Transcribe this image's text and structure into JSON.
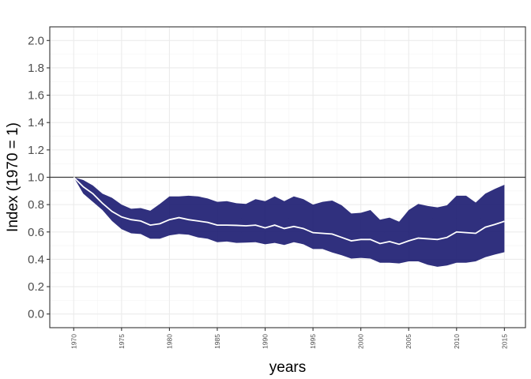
{
  "chart_data": {
    "type": "area",
    "title": "",
    "xlabel": "years",
    "ylabel": "Index (1970 = 1)",
    "xlim": [
      1967.5,
      2017.2
    ],
    "ylim": [
      -0.1,
      2.1
    ],
    "x_ticks": [
      1970,
      1975,
      1980,
      1985,
      1990,
      1995,
      2000,
      2005,
      2010,
      2015
    ],
    "x_tick_labels": [
      "1970",
      "1975",
      "1980",
      "1985",
      "1990",
      "1995",
      "2000",
      "2005",
      "2010",
      "2015"
    ],
    "y_ticks": [
      0.0,
      0.2,
      0.4,
      0.6,
      0.8,
      1.0,
      1.2,
      1.4,
      1.6,
      1.8,
      2.0
    ],
    "y_tick_labels": [
      "0.0",
      "0.2",
      "0.4",
      "0.6",
      "0.8",
      "1.0",
      "1.2",
      "1.4",
      "1.6",
      "1.8",
      "2.0"
    ],
    "reference_line": 1.0,
    "band_color": "#191970",
    "line_color": "#ffffff",
    "series": [
      {
        "name": "index",
        "x": [
          1970,
          1971,
          1972,
          1973,
          1974,
          1975,
          1976,
          1977,
          1978,
          1979,
          1980,
          1981,
          1982,
          1983,
          1984,
          1985,
          1986,
          1987,
          1988,
          1989,
          1990,
          1991,
          1992,
          1993,
          1994,
          1995,
          1996,
          1997,
          1998,
          1999,
          2000,
          2001,
          2002,
          2003,
          2004,
          2005,
          2006,
          2007,
          2008,
          2009,
          2010,
          2011,
          2012,
          2013,
          2014,
          2015
        ],
        "values": [
          1.0,
          0.93,
          0.88,
          0.81,
          0.75,
          0.71,
          0.69,
          0.68,
          0.65,
          0.66,
          0.69,
          0.705,
          0.69,
          0.68,
          0.67,
          0.65,
          0.65,
          0.648,
          0.645,
          0.65,
          0.63,
          0.65,
          0.625,
          0.64,
          0.625,
          0.595,
          0.59,
          0.585,
          0.56,
          0.535,
          0.545,
          0.545,
          0.515,
          0.53,
          0.51,
          0.535,
          0.555,
          0.55,
          0.545,
          0.56,
          0.6,
          0.595,
          0.59,
          0.635,
          0.655,
          0.678
        ],
        "lower": [
          1.0,
          0.88,
          0.82,
          0.76,
          0.68,
          0.62,
          0.59,
          0.585,
          0.55,
          0.55,
          0.575,
          0.585,
          0.58,
          0.56,
          0.55,
          0.525,
          0.53,
          0.52,
          0.522,
          0.525,
          0.51,
          0.52,
          0.505,
          0.525,
          0.51,
          0.475,
          0.475,
          0.45,
          0.43,
          0.405,
          0.41,
          0.405,
          0.375,
          0.375,
          0.37,
          0.385,
          0.385,
          0.36,
          0.345,
          0.355,
          0.375,
          0.375,
          0.385,
          0.415,
          0.435,
          0.452
        ],
        "upper": [
          1.0,
          0.98,
          0.94,
          0.88,
          0.85,
          0.8,
          0.77,
          0.775,
          0.755,
          0.805,
          0.86,
          0.86,
          0.865,
          0.86,
          0.845,
          0.82,
          0.825,
          0.81,
          0.805,
          0.84,
          0.825,
          0.86,
          0.825,
          0.86,
          0.84,
          0.8,
          0.82,
          0.83,
          0.795,
          0.735,
          0.74,
          0.76,
          0.69,
          0.705,
          0.675,
          0.76,
          0.805,
          0.79,
          0.78,
          0.795,
          0.865,
          0.865,
          0.815,
          0.88,
          0.915,
          0.945
        ]
      }
    ]
  }
}
